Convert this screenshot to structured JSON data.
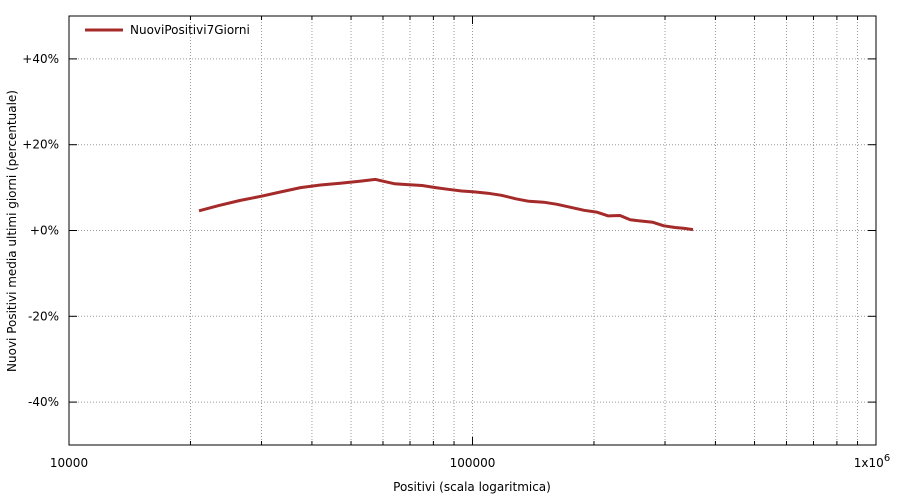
{
  "chart_data": {
    "type": "line",
    "title": "",
    "xlabel": "Positivi (scala logaritmica)",
    "ylabel": "Nuovi Positivi media ultimi giorni (percentuale)",
    "x_scale": "log",
    "xlim": [
      10000,
      1000000
    ],
    "ylim": [
      -50,
      50
    ],
    "x_tick_values": [
      10000,
      100000,
      1000000
    ],
    "x_tick_labels": [
      "10000",
      "100000",
      "1x10"
    ],
    "x_tick_exponent": "6",
    "y_tick_values": [
      40,
      20,
      0,
      -20,
      -40
    ],
    "y_tick_labels": [
      "+40%",
      "+20%",
      "+0%",
      "-20%",
      "-40%"
    ],
    "grid": true,
    "legend_position": "top-left",
    "series": [
      {
        "name": "NuoviPositivi7Giorni",
        "color": "#a52a2a",
        "x": [
          21000,
          23500,
          26500,
          30000,
          33500,
          37500,
          42000,
          47000,
          52500,
          57500,
          60000,
          64000,
          69000,
          75000,
          81000,
          87000,
          94000,
          101000,
          109000,
          118000,
          128000,
          138000,
          150000,
          162000,
          175000,
          189000,
          203000,
          217000,
          232000,
          246000,
          263000,
          280000,
          298000,
          318000,
          335000,
          352000
        ],
        "y": [
          4.6,
          5.8,
          7.0,
          8.0,
          9.0,
          10.0,
          10.6,
          11.0,
          11.5,
          11.9,
          11.5,
          10.9,
          10.7,
          10.5,
          10.0,
          9.6,
          9.2,
          9.0,
          8.7,
          8.2,
          7.4,
          6.8,
          6.6,
          6.1,
          5.4,
          4.7,
          4.3,
          3.4,
          3.5,
          2.5,
          2.2,
          1.9,
          1.1,
          0.7,
          0.5,
          0.2
        ]
      }
    ]
  }
}
